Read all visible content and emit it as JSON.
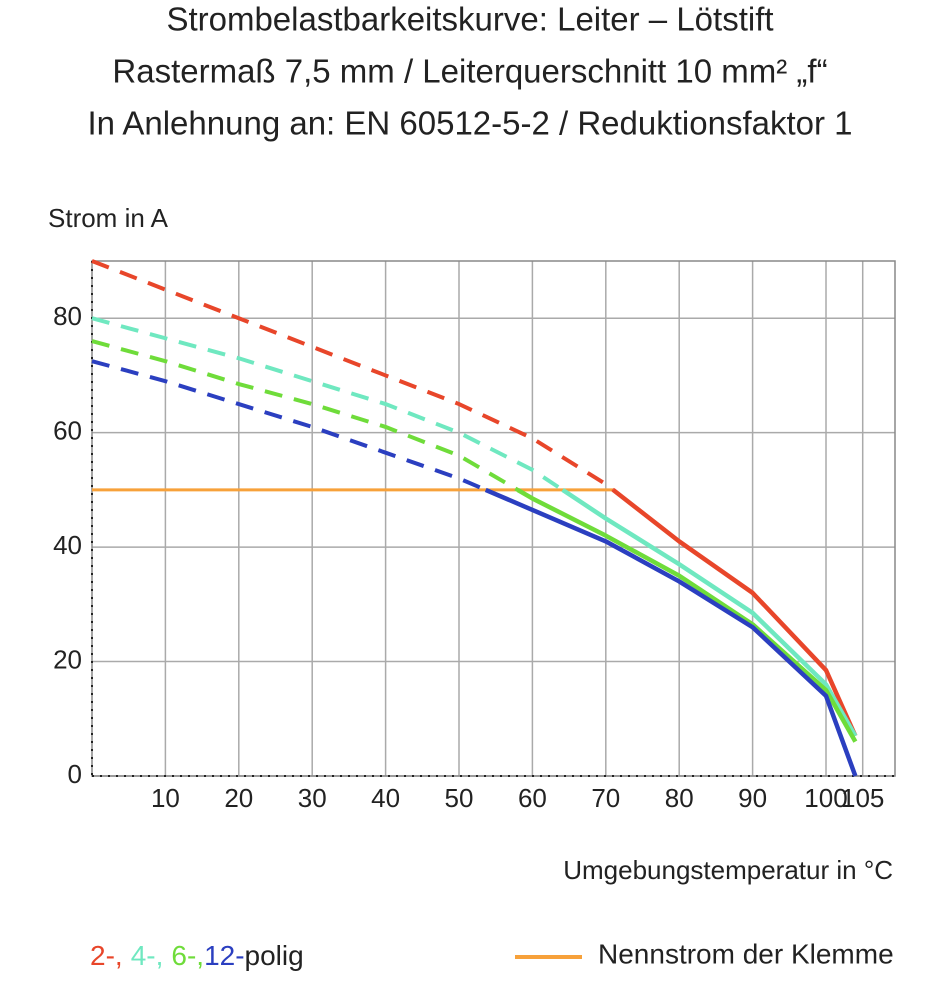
{
  "chart_data": {
    "type": "line",
    "title": "Strombelastbarkeitskurve: Leiter – Lötstift",
    "subtitle": [
      "Rastermaß 7,5 mm / Leiterquerschnitt 10 mm² „f“",
      "In Anlehnung an: EN 60512-5-2 / Reduktionsfaktor 1"
    ],
    "y_label": "Strom in A",
    "x_label": "Umgebungstemperatur in °C",
    "x": [
      0,
      10,
      20,
      30,
      40,
      50,
      60,
      70,
      80,
      90,
      100,
      104
    ],
    "series": [
      {
        "name": "2-,",
        "color": "#e8462a",
        "values": [
          90,
          85,
          80,
          75,
          70,
          65,
          59,
          51,
          41,
          32,
          18.5,
          7
        ]
      },
      {
        "name": "4-,",
        "color": "#6fe8c0",
        "values": [
          80,
          76.5,
          73,
          69,
          65,
          60,
          53.5,
          45,
          37,
          28.5,
          16,
          7
        ]
      },
      {
        "name": "6-,",
        "color": "#6fdc3a",
        "values": [
          76,
          72.5,
          68.5,
          65,
          61,
          56,
          48.5,
          42,
          35,
          26.5,
          15,
          6
        ]
      },
      {
        "name": "12-",
        "color": "#2b3fc0",
        "values": [
          72.5,
          69,
          65,
          61,
          56.5,
          52,
          46.5,
          41,
          34,
          26,
          14,
          0
        ]
      }
    ],
    "legend_suffix": "polig",
    "nennstrom": {
      "name": "Nennstrom der Klemme",
      "value": 50,
      "color": "#f7a13a"
    },
    "xlim": [
      0,
      109.4
    ],
    "xticks": [
      10,
      20,
      30,
      40,
      50,
      60,
      70,
      80,
      90,
      100,
      105
    ],
    "ylim": [
      0,
      90
    ],
    "yticks": [
      0,
      20,
      40,
      60,
      80
    ],
    "grid": true
  }
}
